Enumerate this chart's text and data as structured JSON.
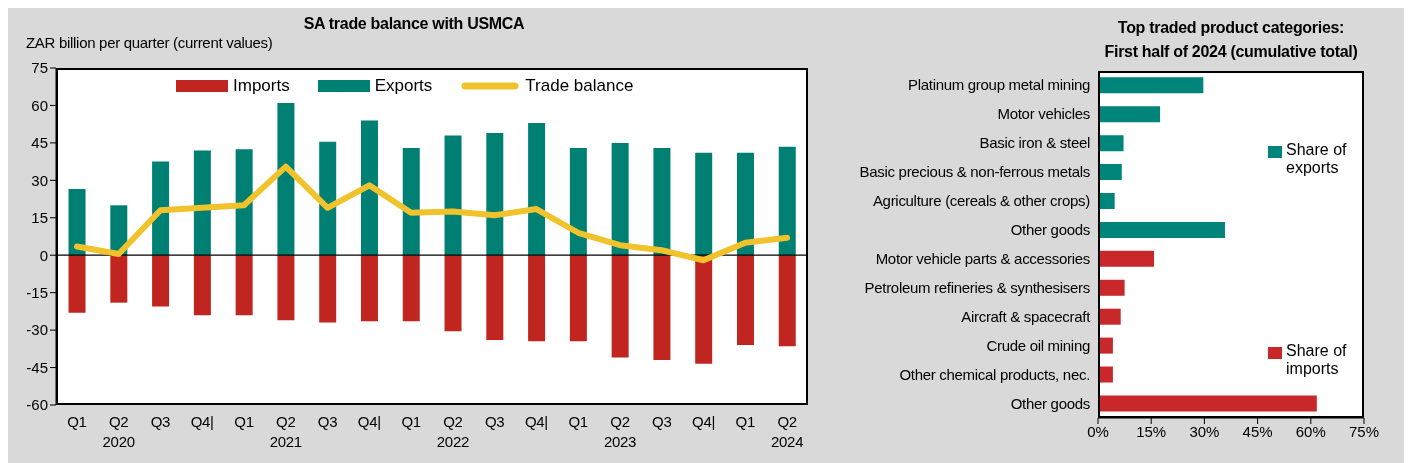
{
  "chart_data": [
    {
      "type": "bar",
      "title": "SA trade balance with USMCA",
      "ylabel": "ZAR billion per quarter (current values)",
      "categories": [
        "Q1",
        "Q2\n2020",
        "Q3",
        "Q4|",
        "Q1",
        "Q2\n2021",
        "Q3",
        "Q4|",
        "Q1",
        "Q2\n2022",
        "Q3",
        "Q4|",
        "Q1",
        "Q2\n2023",
        "Q3",
        "Q4|",
        "Q1",
        "Q2\n2024"
      ],
      "stacked": true,
      "series": [
        {
          "name": "Imports",
          "color": "#c0261f",
          "values": [
            -23,
            -19,
            -20.5,
            -24,
            -24,
            -26,
            -27,
            -26.5,
            -26.5,
            -30.5,
            -34,
            -34.5,
            -34.5,
            -41,
            -42,
            -43.5,
            -36,
            -36.5
          ]
        },
        {
          "name": "Exports",
          "color": "#007f73",
          "values": [
            26.5,
            20,
            37.5,
            42,
            42.5,
            61,
            45.5,
            54,
            43,
            48,
            49,
            53,
            43,
            45,
            43,
            41,
            41,
            43.5
          ]
        },
        {
          "name": "Trade balance",
          "type": "line",
          "color": "#f0c22c",
          "values": [
            3.5,
            0.5,
            18,
            19,
            20,
            35.5,
            19,
            28,
            17,
            17.5,
            16,
            18.5,
            9,
            4,
            2,
            -2,
            5,
            7
          ]
        }
      ],
      "ref_lines": [
        {
          "axis": "y",
          "value": 0,
          "color": "#000000"
        }
      ],
      "ylim": [
        -60,
        75
      ],
      "yticks": [
        -60,
        -45,
        -30,
        -15,
        0,
        15,
        30,
        45,
        60,
        75
      ],
      "grid": false,
      "legend": "top",
      "marker": "none",
      "line_style": "solid"
    },
    {
      "type": "bar",
      "title": "Top traded product categories:\nFirst half of 2024 (cumulative total)",
      "orientation": "horizontal",
      "stacked": true,
      "categories": [
        "Platinum group metal mining",
        "Motor vehicles",
        "Basic iron & steel",
        "Basic precious & non-ferrous metals",
        "Agriculture (cereals & other crops)",
        "Other goods",
        "Motor vehicle parts & accessories",
        "Petroleum refineries & synthesisers",
        "Aircraft & spacecraft",
        "Crude oil mining",
        "Other chemical products, nec.",
        "Other goods"
      ],
      "series": [
        {
          "name": "Share of exports",
          "color": "#00857a",
          "values": [
            29.7,
            17.5,
            7.2,
            6.7,
            4.7,
            35.8,
            null,
            null,
            null,
            null,
            null,
            null
          ]
        },
        {
          "name": "Share of imports",
          "color": "#c8282a",
          "values": [
            null,
            null,
            null,
            null,
            null,
            null,
            15.8,
            7.5,
            6.4,
            4.2,
            4.2,
            61.7
          ]
        }
      ],
      "xlim": [
        0,
        75
      ],
      "xticks": [
        {
          "value": 0,
          "label": "0%"
        },
        {
          "value": 15,
          "label": "15%"
        },
        {
          "value": 30,
          "label": "30%"
        },
        {
          "value": 45,
          "label": "45%"
        },
        {
          "value": 60,
          "label": "60%"
        },
        {
          "value": 75,
          "label": "75%"
        }
      ],
      "grid": false,
      "legend": "right"
    }
  ]
}
